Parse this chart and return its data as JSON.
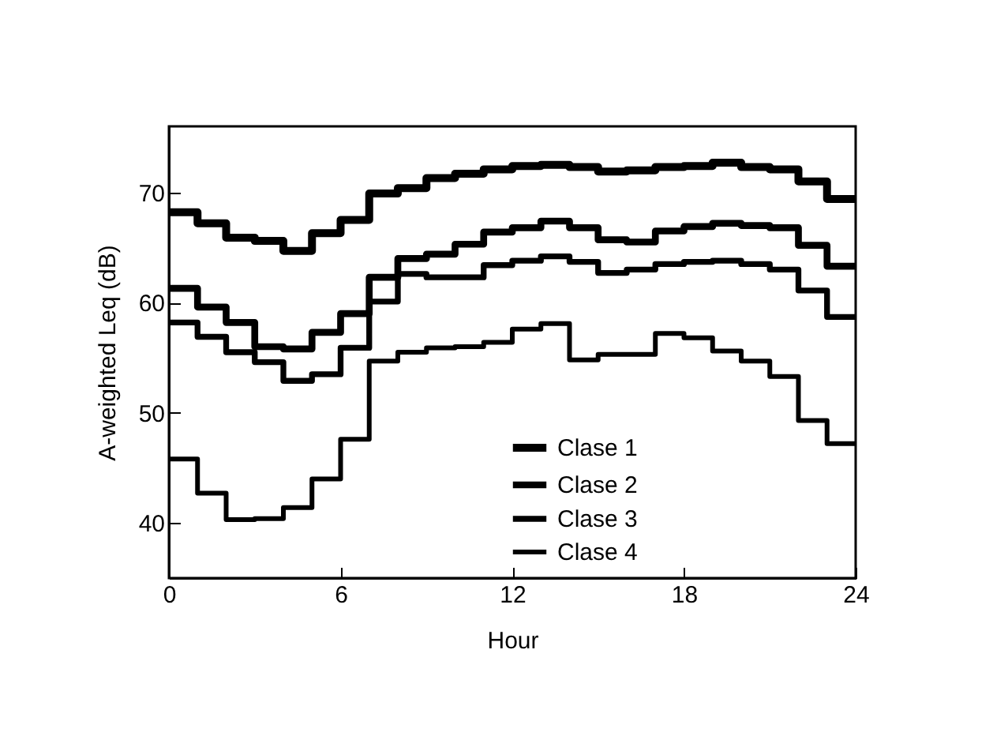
{
  "chart_data": {
    "type": "step",
    "xlabel": "Hour",
    "ylabel": "A-weighted Leq (dB)",
    "x": [
      0,
      1,
      2,
      3,
      4,
      5,
      6,
      7,
      8,
      9,
      10,
      11,
      12,
      13,
      14,
      15,
      16,
      17,
      18,
      19,
      20,
      21,
      22,
      23,
      24
    ],
    "series": [
      {
        "name": "Clase 1",
        "color": "#000000",
        "values": [
          68.2,
          67.2,
          65.9,
          65.6,
          64.7,
          66.3,
          67.5,
          69.9,
          70.4,
          71.3,
          71.7,
          72.1,
          72.4,
          72.5,
          72.3,
          71.9,
          72.0,
          72.3,
          72.4,
          72.7,
          72.3,
          72.1,
          71.0,
          69.4,
          69.4
        ]
      },
      {
        "name": "Clase 2",
        "color": "#000000",
        "values": [
          61.3,
          59.6,
          58.2,
          56.0,
          55.8,
          57.3,
          59.0,
          62.3,
          64.0,
          64.4,
          65.3,
          66.4,
          66.8,
          67.4,
          66.8,
          65.7,
          65.5,
          66.5,
          66.9,
          67.2,
          67.0,
          66.8,
          65.2,
          63.3,
          63.3
        ]
      },
      {
        "name": "Clase 3",
        "color": "#000000",
        "values": [
          58.2,
          56.9,
          55.5,
          54.6,
          52.9,
          53.5,
          55.9,
          60.1,
          62.6,
          62.3,
          62.3,
          63.4,
          63.8,
          64.2,
          63.7,
          62.7,
          63.0,
          63.5,
          63.7,
          63.8,
          63.5,
          63.0,
          61.1,
          58.7,
          58.7
        ]
      },
      {
        "name": "Clase 4",
        "color": "#000000",
        "values": [
          45.8,
          42.7,
          40.3,
          40.4,
          41.4,
          44.0,
          47.6,
          54.7,
          55.5,
          55.9,
          56.0,
          56.4,
          57.6,
          58.1,
          54.8,
          55.3,
          55.3,
          57.2,
          56.8,
          55.6,
          54.7,
          53.3,
          49.3,
          47.2,
          47.2
        ]
      }
    ],
    "xlim": [
      0,
      24
    ],
    "xticks": [
      0,
      6,
      12,
      18,
      24
    ],
    "ylim": [
      35,
      76
    ],
    "yticks": [
      40,
      50,
      60,
      70
    ],
    "grid": false,
    "legend": "bottom right",
    "line_style": "solid",
    "marker": "none"
  }
}
